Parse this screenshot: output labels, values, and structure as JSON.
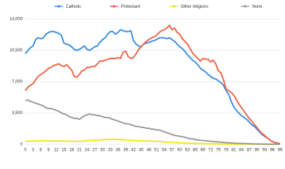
{
  "chart_data": {
    "type": "line",
    "x": [
      0,
      1,
      2,
      3,
      4,
      5,
      6,
      7,
      8,
      9,
      10,
      11,
      12,
      13,
      14,
      15,
      16,
      17,
      18,
      19,
      20,
      21,
      22,
      23,
      24,
      25,
      26,
      27,
      28,
      29,
      30,
      31,
      32,
      33,
      34,
      35,
      36,
      37,
      38,
      39,
      40,
      41,
      42,
      43,
      44,
      45,
      46,
      47,
      48,
      49,
      50,
      51,
      52,
      53,
      54,
      55,
      56,
      57,
      58,
      59,
      60,
      61,
      62,
      63,
      64,
      65,
      66,
      67,
      68,
      69,
      70,
      71,
      72,
      73,
      74,
      75,
      76,
      77,
      78,
      79,
      80,
      81,
      82,
      83,
      84,
      85,
      86,
      87,
      88,
      89,
      90,
      91,
      92,
      93,
      94,
      95,
      96,
      97,
      98,
      99
    ],
    "xlim": [
      0,
      99
    ],
    "xticks": [
      0,
      3,
      6,
      9,
      12,
      15,
      18,
      21,
      24,
      27,
      30,
      33,
      36,
      39,
      42,
      45,
      48,
      51,
      54,
      57,
      60,
      63,
      66,
      69,
      72,
      75,
      78,
      81,
      84,
      87,
      90,
      93,
      96,
      99
    ],
    "ylim": [
      0,
      14000
    ],
    "yticks": [
      0,
      {
        "value": 3500,
        "label": "3,500"
      },
      {
        "value": 7000,
        "label": "7,000"
      },
      {
        "value": 10500,
        "label": "10,500"
      },
      {
        "value": 14000,
        "label": "14,000"
      }
    ],
    "grid": true,
    "legend": "top",
    "series": [
      {
        "name": "Catholic",
        "color": "#3b8ee6",
        "values": [
          10100,
          10500,
          10800,
          11000,
          11700,
          11900,
          11800,
          11900,
          12300,
          12500,
          12600,
          12600,
          12500,
          12400,
          12200,
          11300,
          11200,
          11100,
          10900,
          10600,
          10500,
          10600,
          10800,
          11000,
          10600,
          10500,
          10700,
          10900,
          11000,
          11400,
          11700,
          11900,
          12300,
          12600,
          12600,
          12300,
          12500,
          12800,
          12700,
          12600,
          12600,
          12700,
          11600,
          11200,
          11000,
          10900,
          11200,
          11300,
          11400,
          11500,
          11600,
          11700,
          11900,
          11900,
          11900,
          11800,
          11900,
          11700,
          11500,
          11200,
          10900,
          10700,
          10400,
          10000,
          9700,
          9400,
          9200,
          8900,
          8500,
          8300,
          8100,
          7800,
          7600,
          7400,
          7300,
          7100,
          6900,
          6600,
          6000,
          5600,
          4800,
          4200,
          3800,
          3500,
          3200,
          3000,
          2800,
          2500,
          2200,
          2000,
          1700,
          1400,
          1100,
          900,
          700,
          500,
          300,
          200,
          100,
          50
        ]
      },
      {
        "name": "Protestant",
        "color": "#ec6548",
        "values": [
          6000,
          6400,
          6600,
          6800,
          7200,
          7600,
          7800,
          8000,
          8200,
          8500,
          8600,
          8800,
          8900,
          9000,
          8800,
          8700,
          8900,
          8600,
          8300,
          7600,
          7500,
          7800,
          8200,
          8300,
          8600,
          8600,
          8700,
          8700,
          9000,
          9300,
          9300,
          9400,
          9500,
          9600,
          9600,
          9600,
          9700,
          9600,
          10300,
          10400,
          9800,
          9600,
          9700,
          10100,
          10600,
          10900,
          11200,
          11500,
          11700,
          11900,
          12000,
          12200,
          12500,
          12700,
          12800,
          13000,
          13300,
          12800,
          13000,
          12500,
          12300,
          11800,
          11500,
          11200,
          10700,
          10200,
          9900,
          9600,
          9300,
          9600,
          9500,
          9500,
          9200,
          9400,
          9000,
          8200,
          8000,
          7200,
          6200,
          6000,
          5800,
          5500,
          5000,
          4500,
          4100,
          3700,
          3300,
          2900,
          2600,
          2200,
          1900,
          1500,
          1200,
          1000,
          700,
          500,
          300,
          200,
          150,
          100
        ]
      },
      {
        "name": "Other religions",
        "color": "#f4e61a",
        "values": [
          350,
          350,
          360,
          370,
          380,
          380,
          390,
          390,
          380,
          380,
          370,
          370,
          380,
          380,
          370,
          360,
          350,
          350,
          340,
          330,
          330,
          340,
          360,
          380,
          400,
          420,
          450,
          470,
          480,
          500,
          520,
          540,
          560,
          550,
          580,
          560,
          540,
          560,
          520,
          500,
          470,
          450,
          430,
          420,
          400,
          390,
          380,
          370,
          360,
          350,
          340,
          330,
          320,
          300,
          280,
          260,
          240,
          220,
          200,
          180,
          170,
          160,
          150,
          140,
          130,
          120,
          110,
          100,
          90,
          80,
          70,
          65,
          60,
          55,
          50,
          45,
          40,
          35,
          30,
          30,
          25,
          25,
          20,
          20,
          20,
          15,
          15,
          15,
          10,
          10,
          10,
          10,
          5,
          5,
          5,
          5,
          5,
          5,
          5,
          5
        ]
      },
      {
        "name": "None",
        "color": "#9a9a9a",
        "values": [
          4900,
          4950,
          4800,
          4700,
          4600,
          4500,
          4400,
          4300,
          4100,
          4000,
          4000,
          3900,
          3800,
          3700,
          3500,
          3400,
          3300,
          3100,
          3000,
          2900,
          2900,
          2800,
          3000,
          3200,
          3300,
          3400,
          3300,
          3300,
          3200,
          3200,
          3100,
          3000,
          3000,
          2900,
          2800,
          2700,
          2600,
          2500,
          2400,
          2300,
          2300,
          2200,
          2100,
          2000,
          2000,
          1900,
          1900,
          1800,
          1800,
          1700,
          1700,
          1600,
          1600,
          1500,
          1400,
          1300,
          1200,
          1100,
          1000,
          950,
          900,
          850,
          800,
          700,
          650,
          600,
          550,
          500,
          450,
          420,
          400,
          370,
          340,
          310,
          290,
          270,
          250,
          220,
          200,
          180,
          160,
          140,
          120,
          110,
          100,
          90,
          80,
          70,
          60,
          50,
          45,
          40,
          35,
          30,
          25,
          20,
          20,
          15,
          15,
          10
        ]
      }
    ]
  }
}
